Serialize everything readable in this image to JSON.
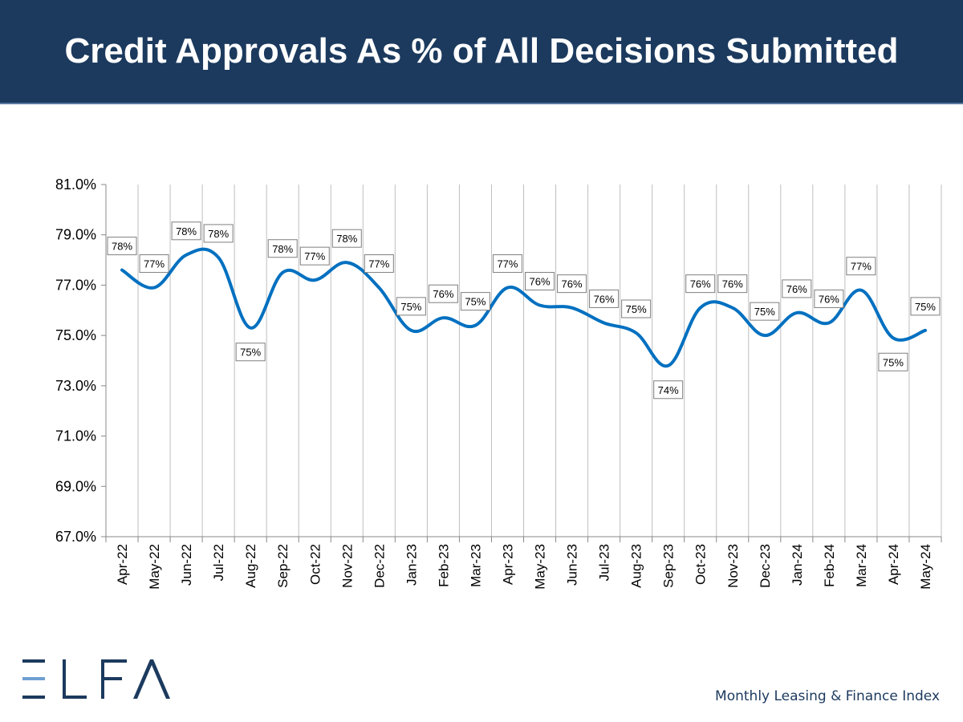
{
  "header": {
    "title": "Credit Approvals As % of All Decisions Submitted"
  },
  "brand": {
    "logo_text": "ELFA",
    "footer_text": "Monthly Leasing & Finance Index",
    "navy": "#1c3a5e",
    "light_blue": "#6f9ed1"
  },
  "chart_data": {
    "type": "line",
    "title": "Credit Approvals As % of All Decisions Submitted",
    "xlabel": "",
    "ylabel": "",
    "ylim": [
      67.0,
      81.0
    ],
    "yticks": [
      "81.0%",
      "79.0%",
      "77.0%",
      "75.0%",
      "73.0%",
      "71.0%",
      "69.0%",
      "67.0%"
    ],
    "ytick_values": [
      81,
      79,
      77,
      75,
      73,
      71,
      69,
      67
    ],
    "grid": "vertical",
    "line_color": "#0070c0",
    "categories": [
      "Apr-22",
      "May-22",
      "Jun-22",
      "Jul-22",
      "Aug-22",
      "Sep-22",
      "Oct-22",
      "Nov-22",
      "Dec-22",
      "Jan-23",
      "Feb-23",
      "Mar-23",
      "Apr-23",
      "May-23",
      "Jun-23",
      "Jul-23",
      "Aug-23",
      "Sep-23",
      "Oct-23",
      "Nov-23",
      "Dec-23",
      "Jan-24",
      "Feb-24",
      "Mar-24",
      "Apr-24",
      "May-24"
    ],
    "values": [
      77.6,
      76.9,
      78.2,
      78.1,
      75.3,
      77.5,
      77.2,
      77.9,
      76.9,
      75.2,
      75.7,
      75.4,
      76.9,
      76.2,
      76.1,
      75.5,
      75.1,
      73.8,
      76.1,
      76.1,
      75.0,
      75.9,
      75.5,
      76.8,
      74.9,
      75.2
    ],
    "labels": [
      "78%",
      "77%",
      "78%",
      "78%",
      "75%",
      "78%",
      "77%",
      "78%",
      "77%",
      "75%",
      "76%",
      "75%",
      "77%",
      "76%",
      "76%",
      "76%",
      "75%",
      "74%",
      "76%",
      "76%",
      "75%",
      "76%",
      "76%",
      "77%",
      "75%",
      "75%"
    ],
    "label_positions": [
      "above",
      "above",
      "above",
      "above",
      "below",
      "above",
      "above",
      "above",
      "above",
      "above",
      "above",
      "above",
      "above",
      "above",
      "above",
      "above",
      "above",
      "below",
      "above",
      "above",
      "above",
      "above",
      "above",
      "above",
      "below",
      "above"
    ]
  }
}
